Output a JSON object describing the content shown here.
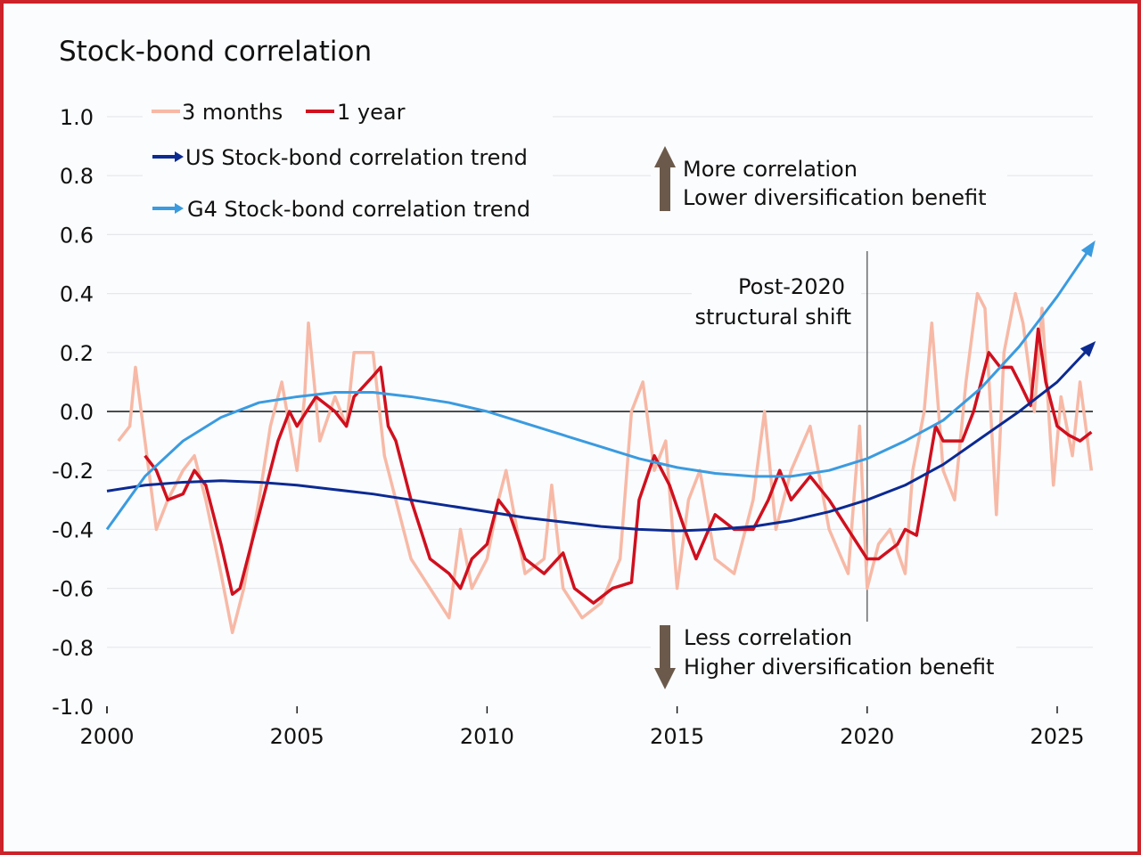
{
  "chart_data": {
    "type": "line",
    "title": "Stock-bond correlation",
    "xlim": [
      2000,
      2026
    ],
    "ylim": [
      -1.0,
      1.0
    ],
    "x_ticks": [
      "2000",
      "2005",
      "2010",
      "2015",
      "2020",
      "2025"
    ],
    "y_ticks": [
      "1.0",
      "0.8",
      "0.6",
      "0.4",
      "0.2",
      "0.0",
      "-0.2",
      "-0.4",
      "-0.6",
      "-0.8",
      "-1.0"
    ],
    "grid": true,
    "legend_placement": "top-left",
    "colors": {
      "three_months": "#f7b9a6",
      "one_year": "#d0101e",
      "us_trend": "#0b2a92",
      "g4_trend": "#3a9be0",
      "annotation_arrow": "#6b5a4b"
    },
    "series": [
      {
        "name": "3 months",
        "x": [
          2000.3,
          2000.6,
          2000.75,
          2001.0,
          2001.3,
          2001.6,
          2002.0,
          2002.3,
          2002.6,
          2003.0,
          2003.3,
          2003.6,
          2004.0,
          2004.3,
          2004.6,
          2005.0,
          2005.2,
          2005.3,
          2005.6,
          2006.0,
          2006.3,
          2006.5,
          2007.0,
          2007.3,
          2007.6,
          2008.0,
          2008.5,
          2009.0,
          2009.3,
          2009.6,
          2010.0,
          2010.3,
          2010.5,
          2011.0,
          2011.5,
          2011.7,
          2012.0,
          2012.5,
          2013.0,
          2013.5,
          2013.8,
          2014.1,
          2014.4,
          2014.7,
          2015.0,
          2015.3,
          2015.6,
          2016.0,
          2016.5,
          2017.0,
          2017.3,
          2017.6,
          2018.0,
          2018.5,
          2019.0,
          2019.5,
          2019.8,
          2020.0,
          2020.3,
          2020.6,
          2021.0,
          2021.2,
          2021.5,
          2021.7,
          2022.0,
          2022.3,
          2022.6,
          2022.9,
          2023.1,
          2023.4,
          2023.6,
          2023.9,
          2024.1,
          2024.4,
          2024.6,
          2024.9,
          2025.1,
          2025.4,
          2025.6,
          2025.9
        ],
        "values": [
          -0.1,
          -0.05,
          0.15,
          -0.1,
          -0.4,
          -0.3,
          -0.2,
          -0.15,
          -0.3,
          -0.55,
          -0.75,
          -0.6,
          -0.3,
          -0.05,
          0.1,
          -0.2,
          0.05,
          0.3,
          -0.1,
          0.05,
          -0.05,
          0.2,
          0.2,
          -0.15,
          -0.3,
          -0.5,
          -0.6,
          -0.7,
          -0.4,
          -0.6,
          -0.5,
          -0.3,
          -0.2,
          -0.55,
          -0.5,
          -0.25,
          -0.6,
          -0.7,
          -0.65,
          -0.5,
          0.0,
          0.1,
          -0.2,
          -0.1,
          -0.6,
          -0.3,
          -0.2,
          -0.5,
          -0.55,
          -0.3,
          0.0,
          -0.4,
          -0.2,
          -0.05,
          -0.4,
          -0.55,
          -0.05,
          -0.6,
          -0.45,
          -0.4,
          -0.55,
          -0.2,
          0.0,
          0.3,
          -0.2,
          -0.3,
          0.1,
          0.4,
          0.35,
          -0.35,
          0.2,
          0.4,
          0.3,
          0.0,
          0.35,
          -0.25,
          0.05,
          -0.15,
          0.1,
          -0.2
        ]
      },
      {
        "name": "1 year",
        "x": [
          2001.0,
          2001.3,
          2001.6,
          2002.0,
          2002.3,
          2002.6,
          2003.0,
          2003.3,
          2003.5,
          2004.0,
          2004.5,
          2004.8,
          2005.0,
          2005.5,
          2006.0,
          2006.3,
          2006.5,
          2007.0,
          2007.2,
          2007.4,
          2007.6,
          2008.0,
          2008.5,
          2009.0,
          2009.3,
          2009.6,
          2010.0,
          2010.3,
          2010.6,
          2011.0,
          2011.5,
          2012.0,
          2012.3,
          2012.8,
          2013.3,
          2013.8,
          2014.0,
          2014.4,
          2014.8,
          2015.2,
          2015.5,
          2016.0,
          2016.5,
          2017.0,
          2017.4,
          2017.7,
          2018.0,
          2018.5,
          2019.0,
          2019.5,
          2020.0,
          2020.3,
          2020.8,
          2021.0,
          2021.3,
          2021.6,
          2021.8,
          2022.0,
          2022.5,
          2022.8,
          2023.0,
          2023.2,
          2023.5,
          2023.8,
          2024.0,
          2024.3,
          2024.5,
          2024.7,
          2025.0,
          2025.3,
          2025.6,
          2025.9
        ],
        "values": [
          -0.15,
          -0.2,
          -0.3,
          -0.28,
          -0.2,
          -0.25,
          -0.45,
          -0.62,
          -0.6,
          -0.35,
          -0.1,
          0.0,
          -0.05,
          0.05,
          0.0,
          -0.05,
          0.05,
          0.12,
          0.15,
          -0.05,
          -0.1,
          -0.3,
          -0.5,
          -0.55,
          -0.6,
          -0.5,
          -0.45,
          -0.3,
          -0.35,
          -0.5,
          -0.55,
          -0.48,
          -0.6,
          -0.65,
          -0.6,
          -0.58,
          -0.3,
          -0.15,
          -0.25,
          -0.4,
          -0.5,
          -0.35,
          -0.4,
          -0.4,
          -0.3,
          -0.2,
          -0.3,
          -0.22,
          -0.3,
          -0.4,
          -0.5,
          -0.5,
          -0.45,
          -0.4,
          -0.42,
          -0.2,
          -0.05,
          -0.1,
          -0.1,
          0.0,
          0.1,
          0.2,
          0.15,
          0.15,
          0.1,
          0.02,
          0.28,
          0.1,
          -0.05,
          -0.08,
          -0.1,
          -0.07
        ]
      },
      {
        "name": "US Stock-bond correlation trend",
        "x": [
          2000,
          2001,
          2002,
          2003,
          2004,
          2005,
          2006,
          2007,
          2008,
          2009,
          2010,
          2011,
          2012,
          2013,
          2014,
          2015,
          2016,
          2017,
          2018,
          2019,
          2020,
          2021,
          2022,
          2023,
          2024,
          2025,
          2025.95
        ],
        "values": [
          -0.27,
          -0.25,
          -0.24,
          -0.235,
          -0.24,
          -0.25,
          -0.265,
          -0.28,
          -0.3,
          -0.32,
          -0.34,
          -0.36,
          -0.375,
          -0.39,
          -0.4,
          -0.405,
          -0.4,
          -0.39,
          -0.37,
          -0.34,
          -0.3,
          -0.25,
          -0.18,
          -0.09,
          0.0,
          0.1,
          0.23
        ]
      },
      {
        "name": "G4 Stock-bond correlation trend",
        "x": [
          2000,
          2001,
          2002,
          2003,
          2004,
          2005,
          2006,
          2007,
          2008,
          2009,
          2010,
          2011,
          2012,
          2013,
          2014,
          2015,
          2016,
          2017,
          2018,
          2019,
          2020,
          2021,
          2022,
          2023,
          2024,
          2025,
          2025.95
        ],
        "values": [
          -0.4,
          -0.22,
          -0.1,
          -0.02,
          0.03,
          0.05,
          0.065,
          0.065,
          0.05,
          0.03,
          0.0,
          -0.04,
          -0.08,
          -0.12,
          -0.16,
          -0.19,
          -0.21,
          -0.22,
          -0.22,
          -0.2,
          -0.16,
          -0.1,
          -0.03,
          0.08,
          0.22,
          0.39,
          0.57
        ]
      }
    ],
    "annotations": {
      "shift_line_x": 2020,
      "shift_label_1": "Post-2020",
      "shift_label_2": "structural shift",
      "up_label_1": "More correlation",
      "up_label_2": "Lower diversification benefit",
      "down_label_1": "Less correlation",
      "down_label_2": "Higher diversification benefit"
    }
  }
}
